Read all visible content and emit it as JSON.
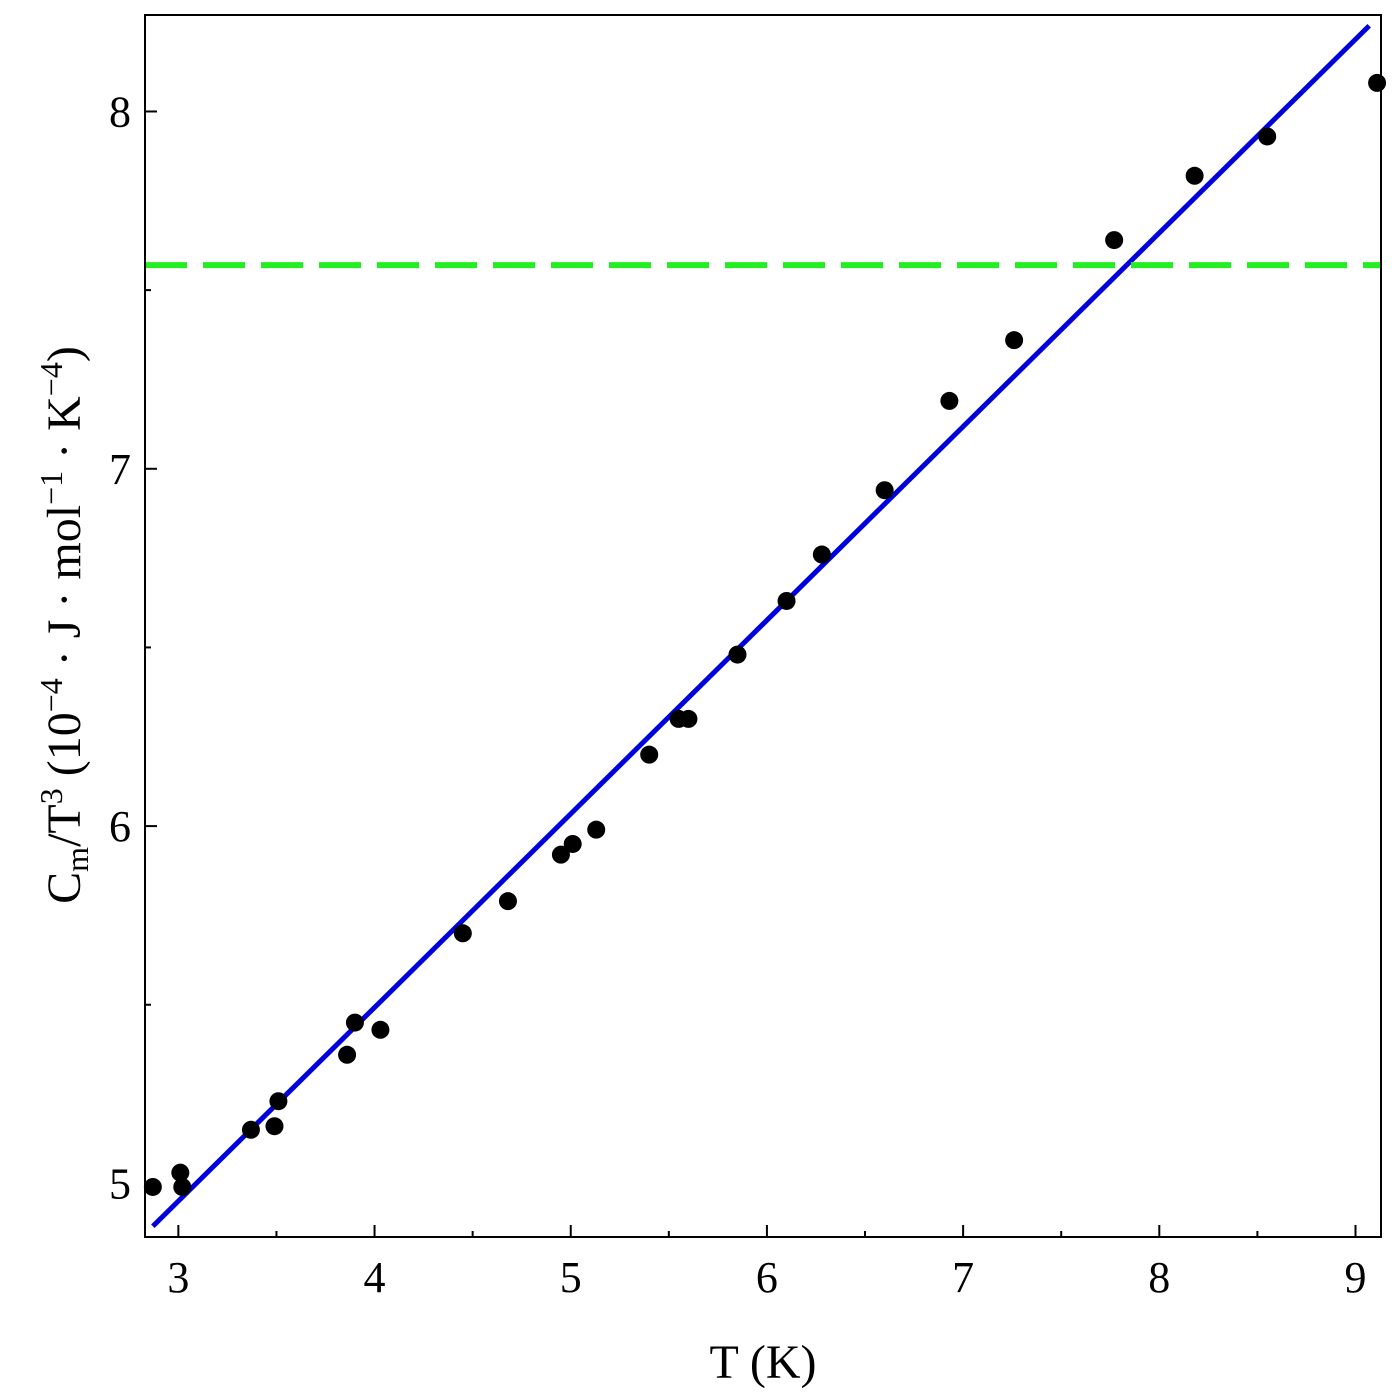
{
  "chart_data": {
    "type": "scatter",
    "xlabel": "T (K)",
    "ylabel": {
      "parts": [
        {
          "text": "C",
          "shift": "base"
        },
        {
          "text": "m",
          "shift": "sub"
        },
        {
          "text": "/T",
          "shift": "base"
        },
        {
          "text": "3",
          "shift": "sup"
        },
        {
          "text": " (10",
          "shift": "base"
        },
        {
          "text": "−4",
          "shift": "sup"
        },
        {
          "text": " · J · mol",
          "shift": "base"
        },
        {
          "text": "−1",
          "shift": "sup"
        },
        {
          "text": " · K",
          "shift": "base"
        },
        {
          "text": "−4",
          "shift": "sup"
        },
        {
          "text": ")",
          "shift": "base"
        }
      ]
    },
    "xlim": [
      2.83,
      9.13
    ],
    "ylim": [
      4.85,
      8.27
    ],
    "x_ticks": [
      3,
      4,
      5,
      6,
      7,
      8,
      9
    ],
    "x_minor_ticks": [
      3.5,
      4.5,
      5.5,
      6.5,
      7.5,
      8.5
    ],
    "y_ticks": [
      5,
      6,
      7,
      8
    ],
    "y_minor_ticks": [
      5.5,
      6.5,
      7.5
    ],
    "grid": false,
    "legend": "none",
    "series": [
      {
        "kind": "scatter",
        "color": "#000000",
        "points": [
          [
            2.87,
            4.99
          ],
          [
            3.01,
            5.03
          ],
          [
            3.02,
            4.99
          ],
          [
            3.37,
            5.15
          ],
          [
            3.49,
            5.16
          ],
          [
            3.51,
            5.23
          ],
          [
            3.86,
            5.36
          ],
          [
            3.9,
            5.45
          ],
          [
            4.03,
            5.43
          ],
          [
            4.45,
            5.7
          ],
          [
            4.68,
            5.79
          ],
          [
            4.95,
            5.92
          ],
          [
            5.01,
            5.95
          ],
          [
            5.13,
            5.99
          ],
          [
            5.4,
            6.2
          ],
          [
            5.55,
            6.3
          ],
          [
            5.6,
            6.3
          ],
          [
            5.85,
            6.48
          ],
          [
            6.1,
            6.63
          ],
          [
            6.28,
            6.76
          ],
          [
            6.6,
            6.94
          ],
          [
            6.93,
            7.19
          ],
          [
            7.26,
            7.36
          ],
          [
            7.77,
            7.64
          ],
          [
            8.18,
            7.82
          ],
          [
            8.55,
            7.93
          ],
          [
            9.11,
            8.08
          ]
        ]
      },
      {
        "kind": "line",
        "style": "solid",
        "color": "#0000dd",
        "points": [
          [
            2.87,
            4.88
          ],
          [
            9.07,
            8.24
          ]
        ]
      },
      {
        "kind": "hline",
        "style": "dashed",
        "color": "#22ee22",
        "y": 7.57
      }
    ]
  }
}
